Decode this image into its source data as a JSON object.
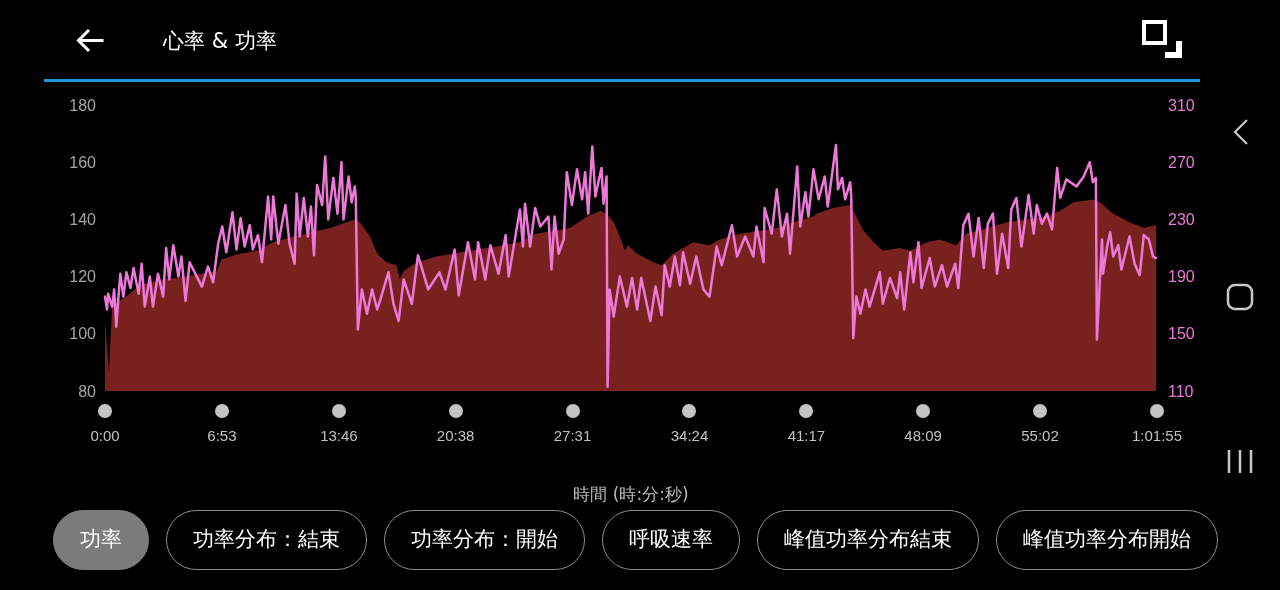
{
  "chart_data": {
    "type": "area",
    "title": "心率 & 功率",
    "xlabel": "時間 (時:分:秒)",
    "xlim": [
      0,
      61.917
    ],
    "xticks": [
      {
        "value": 0,
        "label": "0:00"
      },
      {
        "value": 6.883,
        "label": "6:53"
      },
      {
        "value": 13.767,
        "label": "13:46"
      },
      {
        "value": 20.633,
        "label": "20:38"
      },
      {
        "value": 27.517,
        "label": "27:31"
      },
      {
        "value": 34.4,
        "label": "34:24"
      },
      {
        "value": 41.283,
        "label": "41:17"
      },
      {
        "value": 48.15,
        "label": "48:09"
      },
      {
        "value": 55.033,
        "label": "55:02"
      },
      {
        "value": 61.917,
        "label": "1:01:55"
      }
    ],
    "ylim": [
      80,
      180
    ],
    "yticks": [
      80,
      100,
      120,
      140,
      160,
      180
    ],
    "y2lim": [
      110,
      310
    ],
    "y2ticks": [
      110,
      150,
      190,
      230,
      270,
      310
    ],
    "marker": "none",
    "series": [
      {
        "type": "area",
        "color": "#78211f",
        "x": [
          0,
          0.24,
          0.42,
          1.26,
          2.04,
          3.42,
          4.8,
          6.6,
          6.84,
          7.92,
          8.94,
          9.9,
          11.1,
          11.88,
          12.48,
          13.26,
          14.22,
          14.7,
          15,
          15.6,
          16.02,
          16.56,
          17.16,
          17.34,
          17.58,
          18.36,
          19.5,
          21.48,
          23.46,
          24.42,
          25.38,
          26.4,
          27.36,
          28.38,
          29.16,
          29.52,
          29.94,
          30.3,
          30.6,
          30.78,
          31.32,
          32.28,
          32.76,
          33.42,
          34.62,
          35.58,
          36.18,
          37.38,
          38.58,
          39.54,
          40.5,
          41.7,
          41.88,
          42.84,
          43.86,
          44.22,
          44.64,
          45.24,
          45.78,
          46.8,
          47.4,
          48.36,
          49.14,
          50.1,
          50.7,
          51.9,
          53.1,
          54.24,
          55.44,
          56.22,
          57,
          58.14,
          58.56,
          59.34,
          60.3,
          61.14,
          61.86
        ],
        "values": [
          104,
          87,
          110,
          113,
          117,
          119,
          120,
          122,
          126,
          128,
          129,
          132,
          134,
          135,
          136,
          137,
          139,
          140,
          139,
          134,
          128,
          125,
          124,
          119,
          122,
          125,
          127,
          129,
          131,
          132,
          135,
          136,
          137,
          141,
          143,
          142,
          139,
          134,
          129,
          131,
          128,
          125,
          124,
          128,
          132,
          131,
          133,
          135,
          136,
          137,
          139,
          141,
          142,
          144,
          145,
          141,
          136,
          132,
          129,
          130,
          129,
          132,
          133,
          131,
          135,
          137,
          139,
          140,
          141,
          143,
          146,
          147,
          146,
          142,
          139,
          137,
          138
        ]
      },
      {
        "type": "line",
        "axis": "y2",
        "color": "#ec78d8",
        "x": [
          0,
          0.12,
          0.18,
          0.42,
          0.54,
          0.66,
          0.9,
          1.08,
          1.26,
          1.5,
          1.68,
          1.98,
          2.16,
          2.34,
          2.64,
          2.82,
          3.12,
          3.42,
          3.6,
          3.78,
          4.02,
          4.32,
          4.5,
          4.74,
          4.98,
          5.4,
          5.7,
          6.06,
          6.36,
          6.66,
          6.9,
          7.14,
          7.5,
          7.74,
          7.98,
          8.22,
          8.52,
          8.7,
          9,
          9.24,
          9.6,
          9.78,
          9.9,
          10.2,
          10.62,
          10.86,
          11.16,
          11.28,
          11.46,
          11.7,
          11.94,
          12.12,
          12.3,
          12.48,
          12.78,
          12.96,
          13.14,
          13.44,
          13.68,
          13.92,
          14.04,
          14.34,
          14.52,
          14.7,
          14.76,
          14.88,
          15.12,
          15.42,
          15.72,
          16.02,
          16.26,
          16.68,
          16.98,
          17.28,
          17.58,
          18.06,
          18.42,
          19.02,
          19.68,
          20.04,
          20.58,
          20.82,
          21.36,
          21.78,
          21.96,
          22.38,
          22.68,
          23.16,
          23.58,
          23.76,
          24.42,
          24.6,
          24.72,
          25.02,
          25.32,
          25.62,
          26.1,
          26.28,
          26.46,
          26.7,
          27,
          27.18,
          27.48,
          27.78,
          28.08,
          28.26,
          28.44,
          28.68,
          28.86,
          29.22,
          29.34,
          29.52,
          29.58,
          29.7,
          29.94,
          30.3,
          30.72,
          31.02,
          31.32,
          31.56,
          32.1,
          32.4,
          32.76,
          32.94,
          33.24,
          33.54,
          33.84,
          34.02,
          34.44,
          34.8,
          35.22,
          35.58,
          36,
          36.3,
          36.9,
          37.2,
          37.68,
          38.16,
          38.34,
          38.76,
          38.82,
          39.24,
          39.54,
          39.84,
          40.14,
          40.32,
          40.74,
          40.92,
          41.22,
          41.4,
          41.7,
          42,
          42.36,
          42.54,
          43.02,
          43.14,
          43.38,
          43.56,
          43.86,
          43.92,
          44.04,
          44.22,
          44.46,
          44.76,
          45,
          45.6,
          45.78,
          46.2,
          46.62,
          46.8,
          47.04,
          47.4,
          47.58,
          47.88,
          48.06,
          48.54,
          48.84,
          49.26,
          49.56,
          50.04,
          50.22,
          50.52,
          50.82,
          51.12,
          51.42,
          51.72,
          51.96,
          52.26,
          52.5,
          52.8,
          53.16,
          53.34,
          53.64,
          53.94,
          54.36,
          54.66,
          54.84,
          55.14,
          55.44,
          55.74,
          56.04,
          56.22,
          56.58,
          57.18,
          57.6,
          57.96,
          58.14,
          58.32,
          58.38,
          58.68,
          58.74,
          58.98,
          59.16,
          59.34,
          59.64,
          59.82,
          60.3,
          60.6,
          60.9,
          61.14,
          61.44,
          61.68,
          61.86
        ],
        "values": [
          176,
          167,
          178,
          169,
          181,
          155,
          192,
          176,
          193,
          182,
          196,
          178,
          199,
          169,
          190,
          169,
          192,
          176,
          210,
          188,
          212,
          190,
          204,
          173,
          200,
          190,
          183,
          197,
          186,
          213,
          225,
          207,
          235,
          209,
          231,
          211,
          226,
          209,
          219,
          200,
          246,
          216,
          246,
          213,
          240,
          213,
          199,
          248,
          218,
          245,
          218,
          239,
          205,
          254,
          240,
          274,
          230,
          259,
          234,
          270,
          230,
          260,
          242,
          253,
          246,
          153,
          181,
          164,
          181,
          167,
          176,
          193,
          171,
          159,
          188,
          171,
          205,
          181,
          193,
          181,
          209,
          177,
          214,
          188,
          214,
          188,
          212,
          192,
          219,
          190,
          237,
          211,
          241,
          211,
          238,
          225,
          232,
          195,
          232,
          206,
          216,
          263,
          240,
          265,
          244,
          263,
          234,
          281,
          246,
          266,
          241,
          260,
          113,
          181,
          162,
          190,
          169,
          189,
          167,
          189,
          159,
          183,
          163,
          198,
          183,
          204,
          184,
          207,
          185,
          204,
          181,
          176,
          211,
          198,
          226,
          204,
          218,
          204,
          225,
          200,
          238,
          220,
          251,
          218,
          234,
          206,
          267,
          225,
          249,
          232,
          265,
          244,
          260,
          239,
          282,
          251,
          259,
          244,
          256,
          246,
          147,
          176,
          164,
          181,
          169,
          193,
          171,
          189,
          175,
          193,
          167,
          207,
          186,
          214,
          182,
          203,
          183,
          198,
          183,
          199,
          182,
          226,
          234,
          204,
          231,
          196,
          227,
          234,
          192,
          220,
          196,
          237,
          245,
          211,
          247,
          220,
          240,
          227,
          234,
          223,
          266,
          245,
          258,
          253,
          260,
          270,
          256,
          259,
          146,
          216,
          192,
          211,
          221,
          204,
          212,
          195,
          218,
          199,
          191,
          219,
          216,
          204,
          203
        ]
      }
    ],
    "annotations": [
      "功率",
      "功率分布：結束",
      "功率分布：開始",
      "呼吸速率",
      "峰值功率分布結束",
      "峰值功率分布開始"
    ]
  }
}
